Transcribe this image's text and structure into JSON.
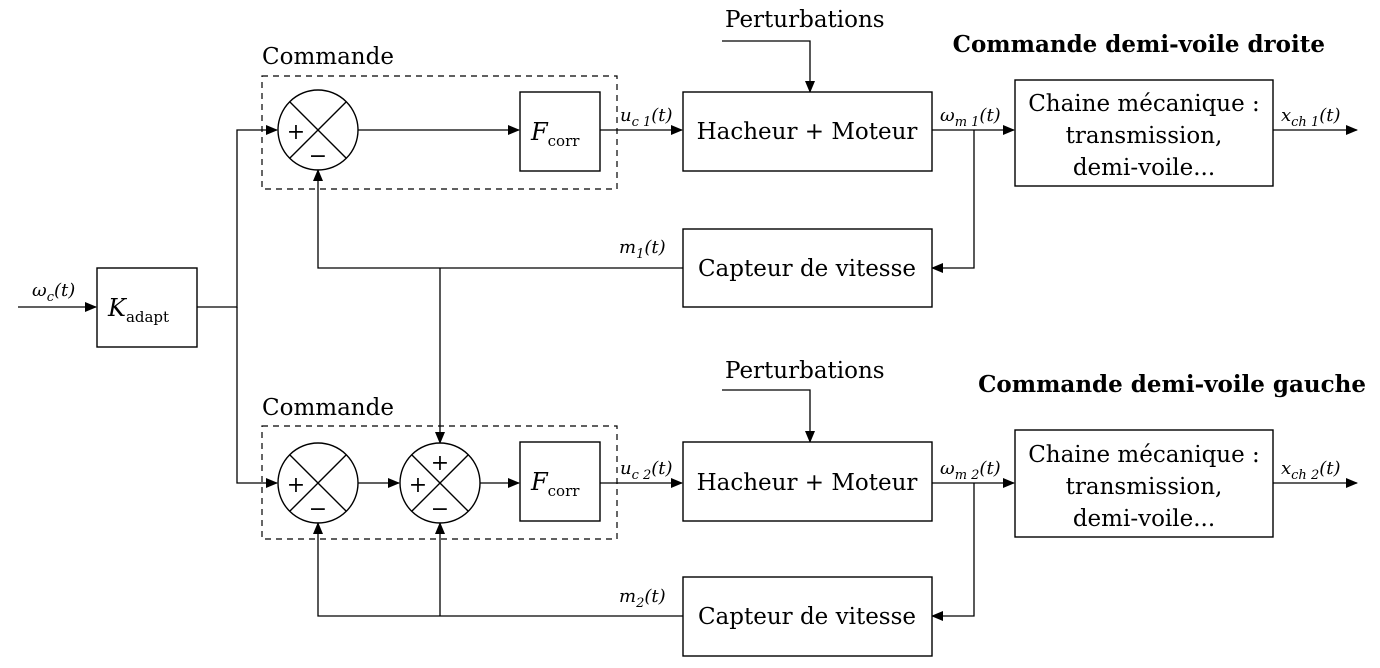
{
  "titles": {
    "top": "Commande demi-voile droite",
    "bottom": "Commande demi-voile gauche"
  },
  "labels": {
    "commande": "Commande",
    "perturbations": "Perturbations",
    "k_adapt_main": "K",
    "k_adapt_sub": "adapt",
    "f_corr_main": "F",
    "f_corr_sub": "corr",
    "hacheur_moteur": "Hacheur + Moteur",
    "capteur": "Capteur de vitesse",
    "chaine_line1": "Chaine mécanique :",
    "chaine_line2": "transmission,",
    "chaine_line3": "demi-voile..."
  },
  "signals": {
    "omega_c": "ω",
    "omega_c_sub": "c",
    "omega_c_arg": "(t)",
    "u_c1": "u",
    "u_c1_sub": "c 1",
    "u_c1_arg": "(t)",
    "u_c2": "u",
    "u_c2_sub": "c 2",
    "u_c2_arg": "(t)",
    "omega_m1": "ω",
    "omega_m1_sub": "m 1",
    "omega_m1_arg": "(t)",
    "omega_m2": "ω",
    "omega_m2_sub": "m 2",
    "omega_m2_arg": "(t)",
    "x_ch1": "x",
    "x_ch1_sub": "ch 1",
    "x_ch1_arg": "(t)",
    "x_ch2": "x",
    "x_ch2_sub": "ch 2",
    "x_ch2_arg": "(t)",
    "m1": "m",
    "m1_sub": "1",
    "m1_arg": "(t)",
    "m2": "m",
    "m2_sub": "2",
    "m2_arg": "(t)"
  },
  "signs": {
    "plus": "+",
    "minus": "−"
  }
}
